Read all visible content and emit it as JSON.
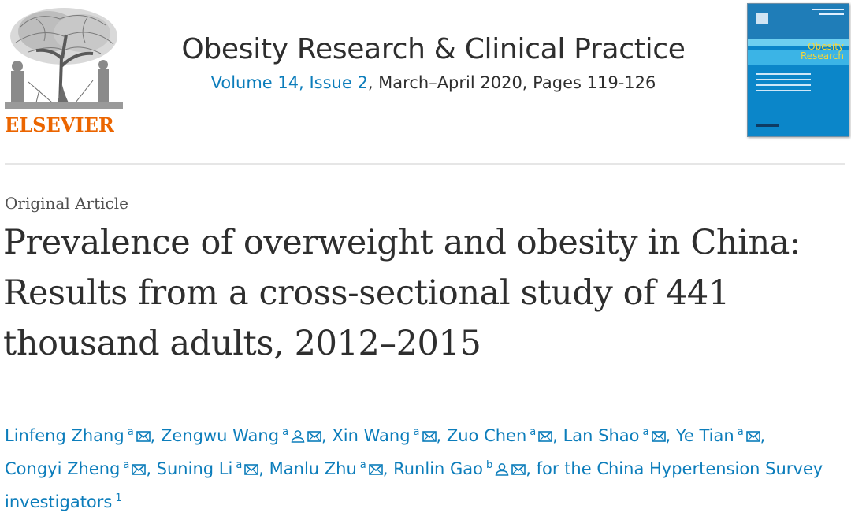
{
  "publisher": {
    "name": "ELSEVIER"
  },
  "journal": {
    "title": "Obesity Research & Clinical Practice",
    "volume_issue_link": "Volume 14, Issue 2",
    "issue_details": ", March–April 2020, Pages 119-126",
    "cover_title": "Obesity",
    "cover_subtitle": "Research"
  },
  "article": {
    "type": "Original Article",
    "title": "Prevalence of overweight and obesity in China: Results from a cross-sectional study of 441 thousand adults, 2012–2015"
  },
  "authors": [
    {
      "name": "Linfeng Zhang",
      "aff": "a",
      "corresponding": false
    },
    {
      "name": "Zengwu Wang",
      "aff": "a",
      "corresponding": true
    },
    {
      "name": "Xin Wang",
      "aff": "a",
      "corresponding": false
    },
    {
      "name": "Zuo Chen",
      "aff": "a",
      "corresponding": false
    },
    {
      "name": "Lan Shao",
      "aff": "a",
      "corresponding": false
    },
    {
      "name": "Ye Tian",
      "aff": "a",
      "corresponding": false
    },
    {
      "name": "Congyi Zheng",
      "aff": "a",
      "corresponding": false
    },
    {
      "name": "Suning Li",
      "aff": "a",
      "corresponding": false
    },
    {
      "name": "Manlu Zhu",
      "aff": "a",
      "corresponding": false
    },
    {
      "name": "Runlin Gao",
      "aff": "b",
      "corresponding": true
    }
  ],
  "group_author": {
    "text": "for the China Hypertension Survey investigators",
    "footnote": "1"
  },
  "icons": {
    "email": "email-icon",
    "person": "person-icon",
    "logo": "elsevier-tree-logo"
  },
  "colors": {
    "link": "#0c7dbb",
    "brand": "#eb6500",
    "text": "#2e2e2e",
    "cover": "#0b86c9"
  }
}
